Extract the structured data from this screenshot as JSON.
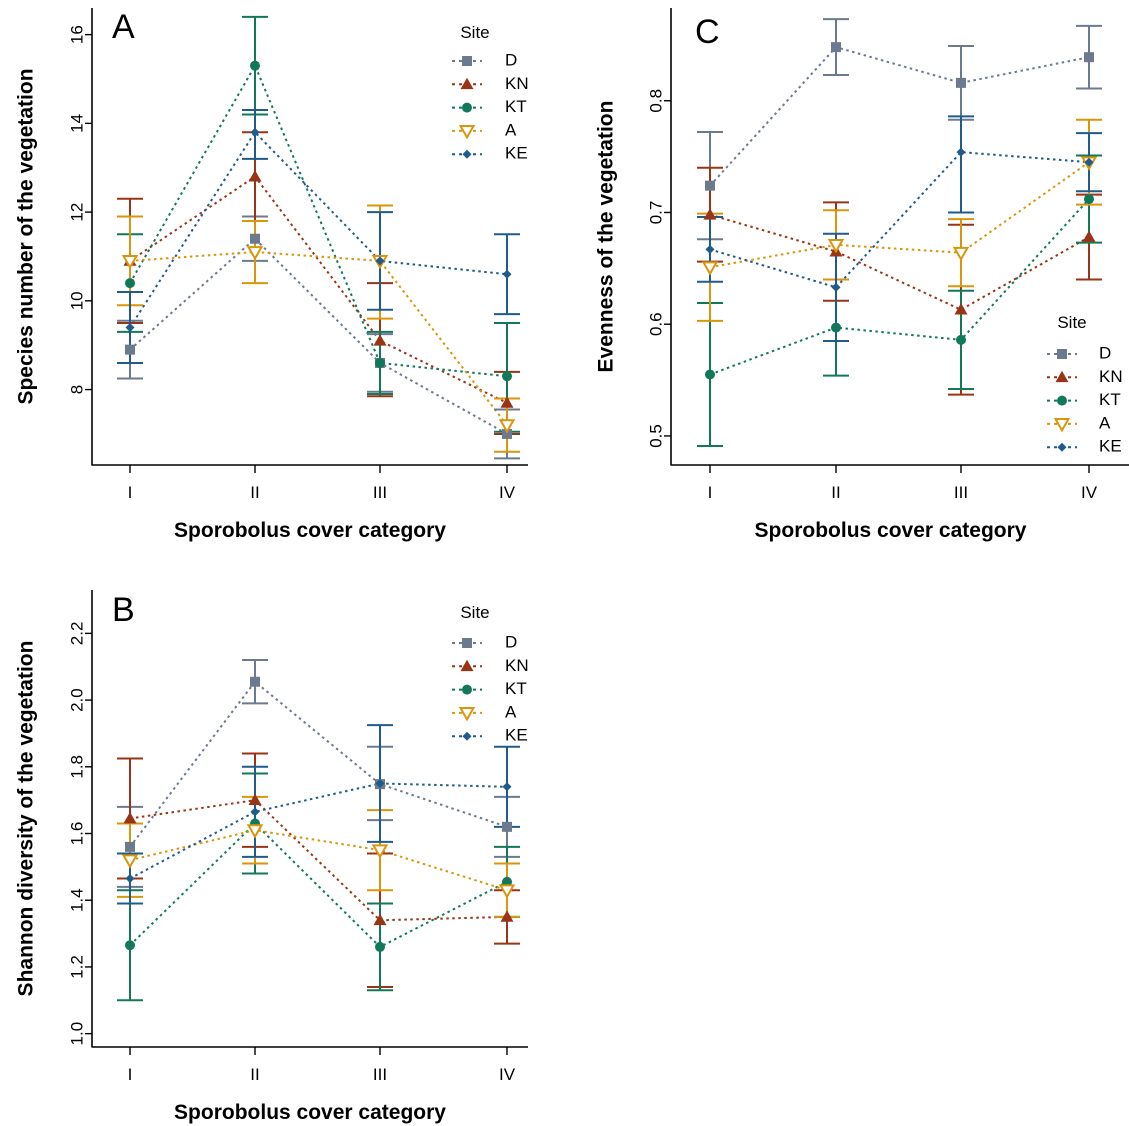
{
  "chart_data": [
    {
      "panel_label": "A",
      "type": "line",
      "xlabel": "Sporobolus cover category",
      "ylabel": "Species number of the vegetation",
      "categories": [
        "I",
        "II",
        "III",
        "IV"
      ],
      "ylim": [
        6.3,
        16.6
      ],
      "yticks": [
        8,
        10,
        12,
        14,
        16
      ],
      "y_tick_labels": [
        "8",
        "10",
        "12",
        "14",
        "16"
      ],
      "legend_title": "Site",
      "legend_position": "top-right",
      "grid": false,
      "series": [
        {
          "name": "D",
          "values": [
            8.9,
            11.4,
            8.6,
            7.0
          ],
          "lower": [
            8.25,
            10.9,
            7.95,
            6.45
          ],
          "upper": [
            9.55,
            11.9,
            9.25,
            7.55
          ]
        },
        {
          "name": "KN",
          "values": [
            10.9,
            12.8,
            9.1,
            7.7
          ],
          "lower": [
            9.5,
            11.8,
            7.85,
            7.0
          ],
          "upper": [
            12.3,
            13.8,
            10.4,
            8.4
          ]
        },
        {
          "name": "KT",
          "values": [
            10.4,
            15.3,
            8.6,
            8.3
          ],
          "lower": [
            9.3,
            14.2,
            7.9,
            7.05
          ],
          "upper": [
            11.5,
            16.4,
            9.3,
            9.5
          ]
        },
        {
          "name": "A",
          "values": [
            10.9,
            11.1,
            10.9,
            7.2
          ],
          "lower": [
            9.9,
            10.4,
            9.6,
            6.6
          ],
          "upper": [
            11.9,
            11.8,
            12.15,
            7.8
          ]
        },
        {
          "name": "KE",
          "values": [
            9.4,
            13.8,
            10.9,
            10.6
          ],
          "lower": [
            8.6,
            13.2,
            9.8,
            9.7
          ],
          "upper": [
            10.2,
            14.3,
            12.0,
            11.5
          ]
        }
      ]
    },
    {
      "panel_label": "C",
      "type": "line",
      "xlabel": "Sporobolus cover category",
      "ylabel": "Evenness of the vegetation",
      "categories": [
        "I",
        "II",
        "III",
        "IV"
      ],
      "ylim": [
        0.474,
        0.883
      ],
      "yticks": [
        0.5,
        0.6,
        0.7,
        0.8
      ],
      "y_tick_labels": [
        "0.5",
        "0.6",
        "0.7",
        "0.8"
      ],
      "legend_title": "Site",
      "legend_position": "bottom-right",
      "grid": false,
      "series": [
        {
          "name": "D",
          "values": [
            0.724,
            0.848,
            0.816,
            0.839
          ],
          "lower": [
            0.676,
            0.823,
            0.783,
            0.811
          ],
          "upper": [
            0.772,
            0.873,
            0.849,
            0.867
          ]
        },
        {
          "name": "KN",
          "values": [
            0.698,
            0.665,
            0.613,
            0.678
          ],
          "lower": [
            0.656,
            0.621,
            0.537,
            0.64
          ],
          "upper": [
            0.74,
            0.709,
            0.689,
            0.716
          ]
        },
        {
          "name": "KT",
          "values": [
            0.555,
            0.597,
            0.586,
            0.712
          ],
          "lower": [
            0.491,
            0.554,
            0.542,
            0.673
          ],
          "upper": [
            0.619,
            0.64,
            0.63,
            0.751
          ]
        },
        {
          "name": "A",
          "values": [
            0.651,
            0.671,
            0.664,
            0.745
          ],
          "lower": [
            0.603,
            0.64,
            0.634,
            0.707
          ],
          "upper": [
            0.699,
            0.702,
            0.694,
            0.783
          ]
        },
        {
          "name": "KE",
          "values": [
            0.667,
            0.633,
            0.754,
            0.745
          ],
          "lower": [
            0.638,
            0.585,
            0.7,
            0.719
          ],
          "upper": [
            0.696,
            0.681,
            0.786,
            0.771
          ]
        }
      ]
    },
    {
      "panel_label": "B",
      "type": "line",
      "xlabel": "Sporobolus cover category",
      "ylabel": "Shannon diversity of the vegetation",
      "categories": [
        "I",
        "II",
        "III",
        "IV"
      ],
      "ylim": [
        0.96,
        2.33
      ],
      "yticks": [
        1.0,
        1.2,
        1.4,
        1.6,
        1.8,
        2.0,
        2.2
      ],
      "y_tick_labels": [
        "1.0",
        "1.2",
        "1.4",
        "1.6",
        "1.8",
        "2.0",
        "2.2"
      ],
      "legend_title": "Site",
      "legend_position": "top-right",
      "grid": false,
      "series": [
        {
          "name": "D",
          "values": [
            1.56,
            2.055,
            1.748,
            1.62
          ],
          "lower": [
            1.44,
            1.99,
            1.64,
            1.53
          ],
          "upper": [
            1.68,
            2.12,
            1.86,
            1.71
          ]
        },
        {
          "name": "KN",
          "values": [
            1.645,
            1.7,
            1.34,
            1.35
          ],
          "lower": [
            1.465,
            1.56,
            1.14,
            1.27
          ],
          "upper": [
            1.825,
            1.84,
            1.54,
            1.43
          ]
        },
        {
          "name": "KT",
          "values": [
            1.265,
            1.63,
            1.26,
            1.455
          ],
          "lower": [
            1.1,
            1.48,
            1.13,
            1.35
          ],
          "upper": [
            1.43,
            1.78,
            1.39,
            1.56
          ]
        },
        {
          "name": "A",
          "values": [
            1.52,
            1.61,
            1.55,
            1.43
          ],
          "lower": [
            1.41,
            1.51,
            1.43,
            1.35
          ],
          "upper": [
            1.63,
            1.71,
            1.67,
            1.51
          ]
        },
        {
          "name": "KE",
          "values": [
            1.465,
            1.665,
            1.75,
            1.74
          ],
          "lower": [
            1.39,
            1.53,
            1.575,
            1.62
          ],
          "upper": [
            1.54,
            1.8,
            1.925,
            1.86
          ]
        }
      ]
    }
  ],
  "series_styles": [
    {
      "name": "D",
      "color": "#6b7a8f",
      "marker": "square"
    },
    {
      "name": "KN",
      "color": "#9a3416",
      "marker": "triangle-up"
    },
    {
      "name": "KT",
      "color": "#12785a",
      "marker": "circle"
    },
    {
      "name": "A",
      "color": "#d9960c",
      "marker": "triangle-down-open"
    },
    {
      "name": "KE",
      "color": "#1f5c8c",
      "marker": "diamond"
    }
  ]
}
